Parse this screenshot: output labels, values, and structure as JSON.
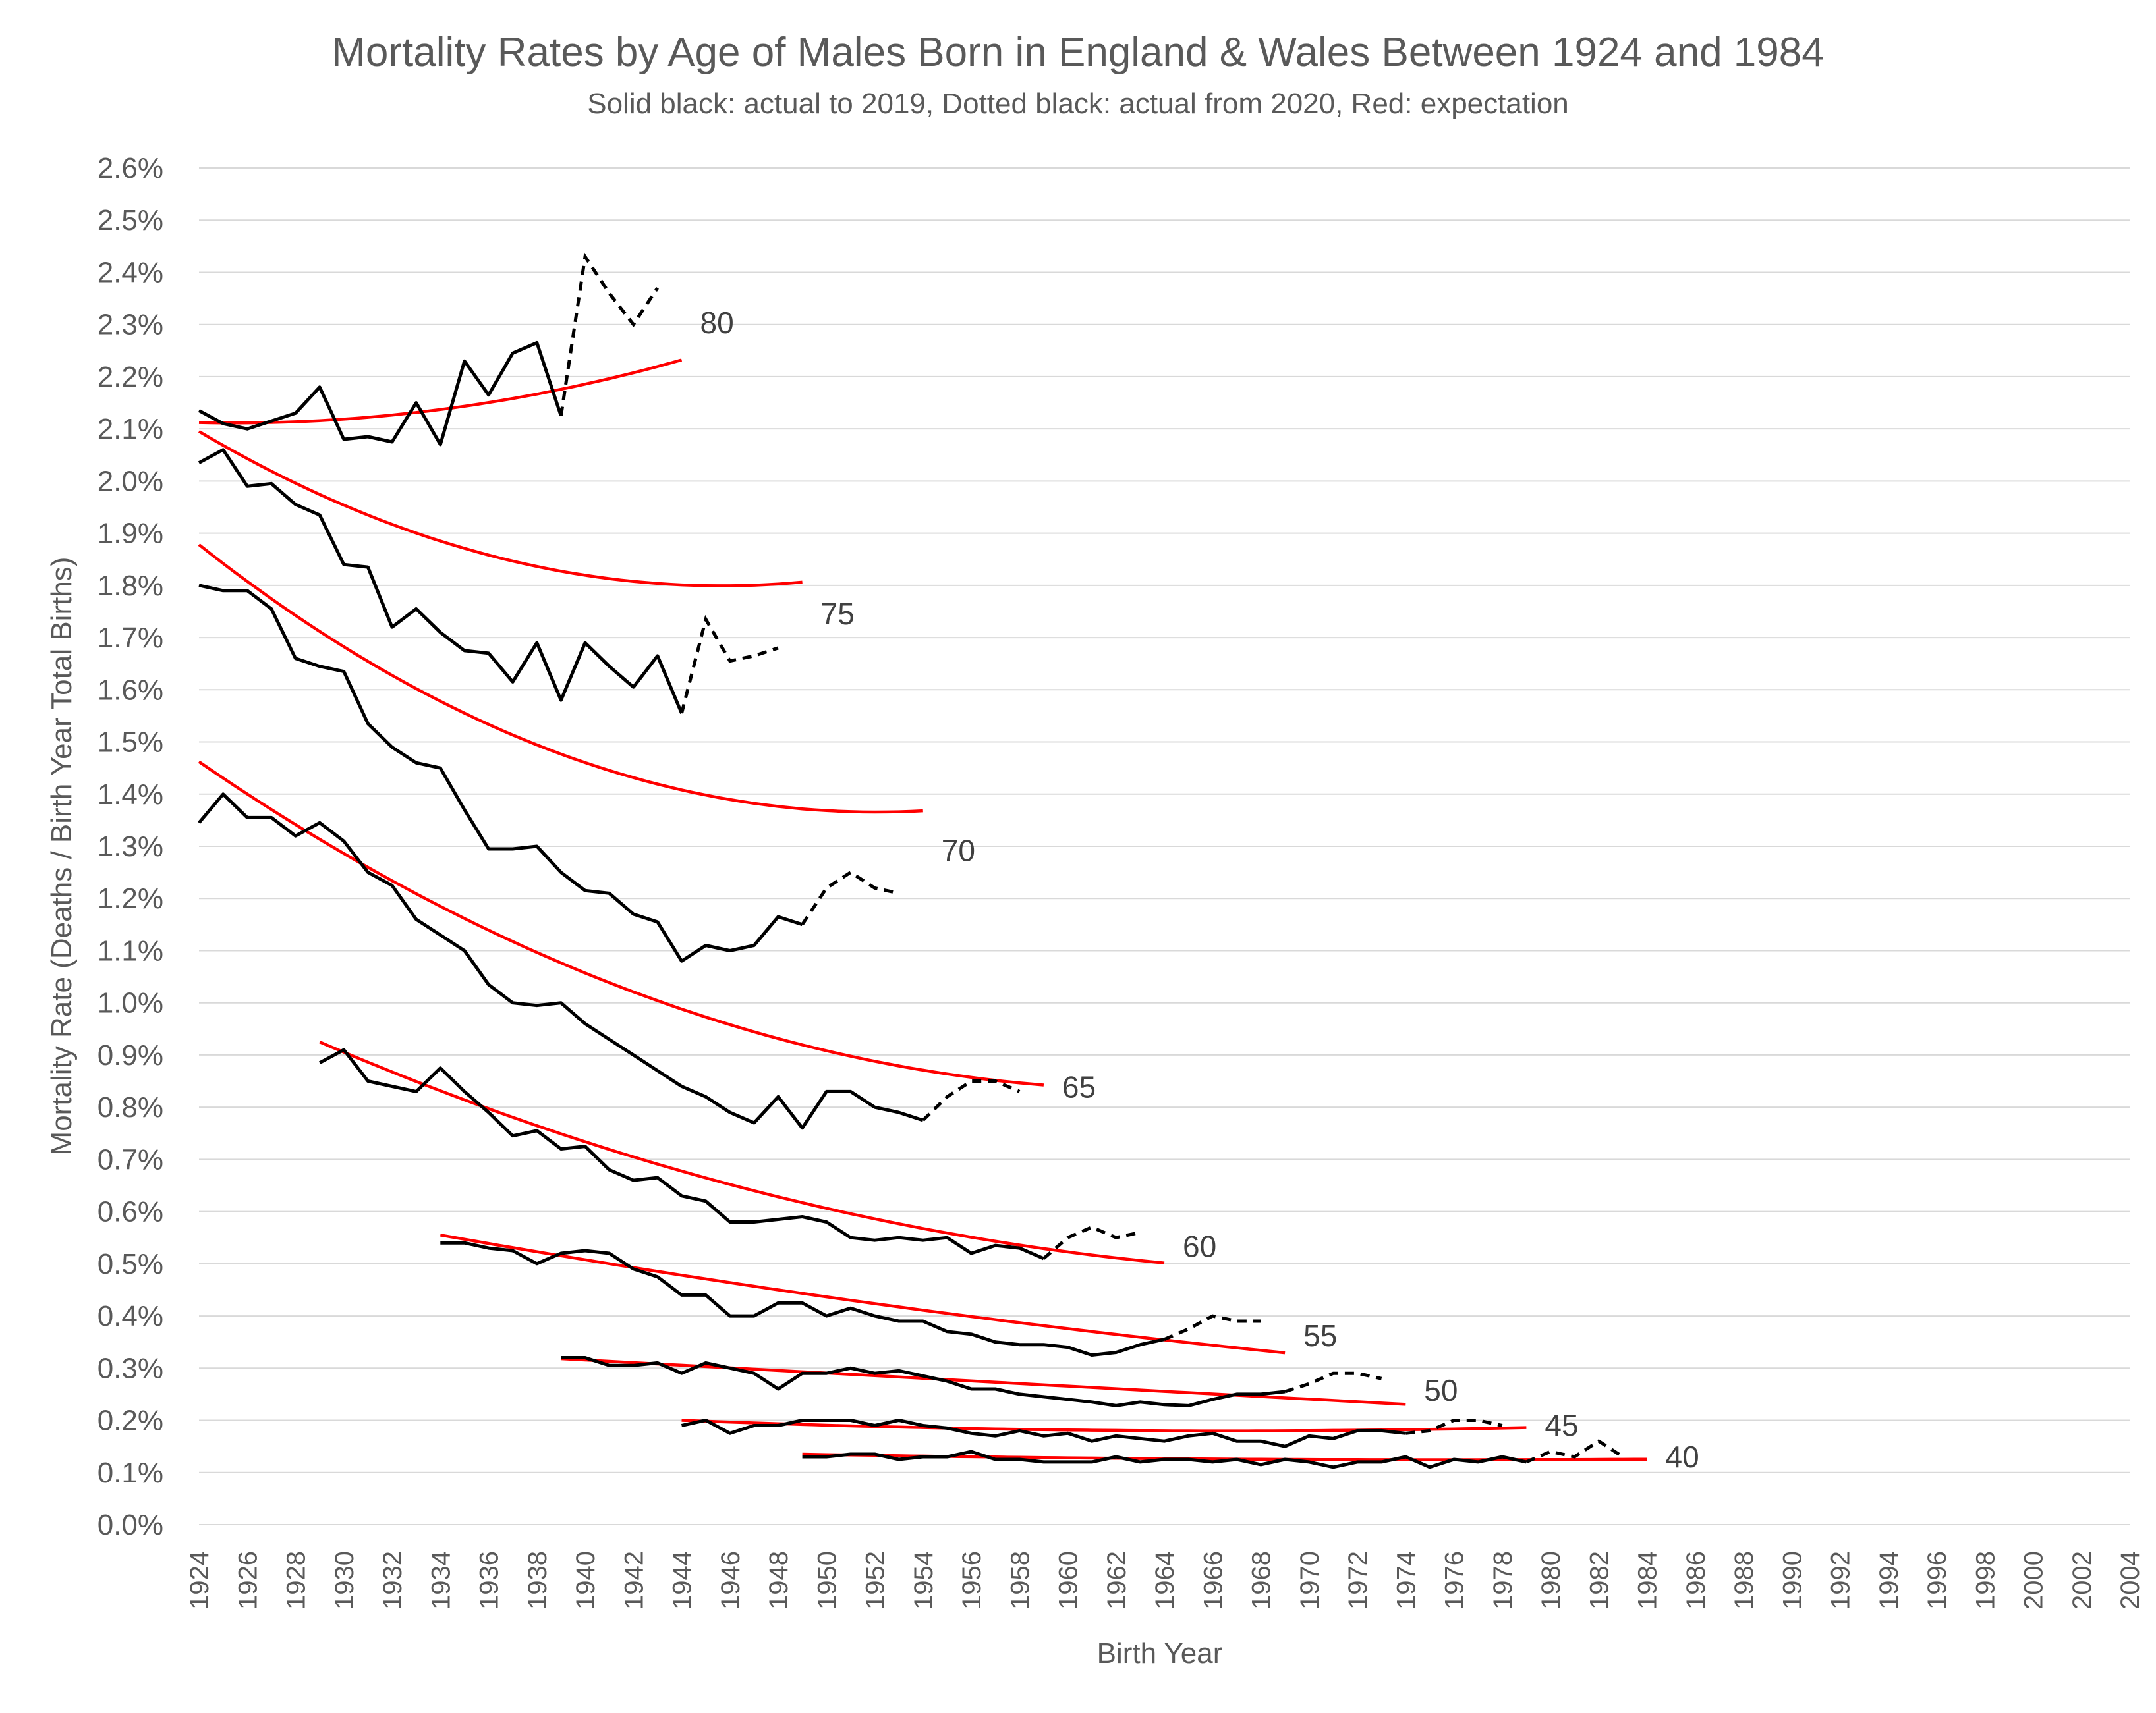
{
  "chart_data": {
    "type": "line",
    "title": "Mortality Rates by Age of Males Born in England & Wales Between 1924 and 1984",
    "subtitle": "Solid black: actual to 2019, Dotted black: actual from 2020, Red: expectation",
    "xlabel": "Birth Year",
    "ylabel": "Mortality Rate (Deaths / Birth Year Total Births)",
    "xlim": [
      1924,
      2004
    ],
    "ylim": [
      0,
      0.026
    ],
    "x_ticks": [
      "1924",
      "1926",
      "1928",
      "1930",
      "1932",
      "1934",
      "1936",
      "1938",
      "1940",
      "1942",
      "1944",
      "1946",
      "1948",
      "1950",
      "1952",
      "1954",
      "1956",
      "1958",
      "1960",
      "1962",
      "1964",
      "1966",
      "1968",
      "1970",
      "1972",
      "1974",
      "1976",
      "1978",
      "1980",
      "1982",
      "1984",
      "1986",
      "1988",
      "1990",
      "1992",
      "1994",
      "1996",
      "1998",
      "2000",
      "2002",
      "2004"
    ],
    "y_ticks": [
      "0.0%",
      "0.1%",
      "0.2%",
      "0.3%",
      "0.4%",
      "0.5%",
      "0.6%",
      "0.7%",
      "0.8%",
      "0.9%",
      "1.0%",
      "1.1%",
      "1.2%",
      "1.3%",
      "1.4%",
      "1.5%",
      "1.6%",
      "1.7%",
      "1.8%",
      "1.9%",
      "2.0%",
      "2.1%",
      "2.2%",
      "2.3%",
      "2.4%",
      "2.5%",
      "2.6%"
    ],
    "grid": true,
    "colors": {
      "actual": "#000000",
      "expectation": "#ff0000"
    },
    "series": [
      {
        "name": "80",
        "actual_start": 1924,
        "actual": [
          0.02135,
          0.0211,
          0.021,
          0.02115,
          0.0213,
          0.0218,
          0.0208,
          0.02085,
          0.02075,
          0.0215,
          0.0207,
          0.0223,
          0.02165,
          0.02245,
          0.02265,
          0.02125
        ],
        "dotted_start": 1939,
        "dotted": [
          0.02125,
          0.0243,
          0.0236,
          0.023,
          0.0237
        ],
        "expected_range": [
          1924,
          1944
        ],
        "expected_quad": [
          0.02112,
          -1e-05,
          3.5e-06
        ]
      },
      {
        "name": "75",
        "actual_start": 1924,
        "actual": [
          0.02035,
          0.0206,
          0.0199,
          0.01995,
          0.01955,
          0.01935,
          0.0184,
          0.01835,
          0.0172,
          0.01755,
          0.0171,
          0.01675,
          0.0167,
          0.01615,
          0.0169,
          0.0158,
          0.0169,
          0.01645,
          0.01605,
          0.01665,
          0.01555
        ],
        "dotted_start": 1944,
        "dotted": [
          0.01555,
          0.01735,
          0.01655,
          0.01665,
          0.0168
        ],
        "expected_range": [
          1924,
          1949
        ],
        "expected_quad": [
          0.02095,
          -0.000273,
          6.3e-06
        ]
      },
      {
        "name": "70",
        "actual_start": 1924,
        "actual": [
          0.018,
          0.0179,
          0.0179,
          0.01755,
          0.0166,
          0.01645,
          0.01635,
          0.01535,
          0.0149,
          0.0146,
          0.0145,
          0.0137,
          0.01295,
          0.01295,
          0.013,
          0.0125,
          0.01215,
          0.0121,
          0.0117,
          0.01155,
          0.0108,
          0.0111,
          0.011,
          0.0111,
          0.01165,
          0.0115
        ],
        "dotted_start": 1949,
        "dotted": [
          0.0115,
          0.0122,
          0.0125,
          0.0122,
          0.0121
        ],
        "expected_range": [
          1924,
          1954
        ],
        "expected_quad": [
          0.01878,
          -0.000365,
          6.5e-06
        ]
      },
      {
        "name": "65",
        "actual_start": 1924,
        "actual": [
          0.01345,
          0.014,
          0.01355,
          0.01355,
          0.0132,
          0.01345,
          0.0131,
          0.0125,
          0.01225,
          0.0116,
          0.0113,
          0.011,
          0.01035,
          0.01,
          0.00995,
          0.01,
          0.0096,
          0.0093,
          0.009,
          0.0087,
          0.0084,
          0.0082,
          0.0079,
          0.0077,
          0.0082,
          0.0076,
          0.0083,
          0.0083,
          0.008,
          0.0079,
          0.00775
        ],
        "dotted_start": 1954,
        "dotted": [
          0.00775,
          0.0082,
          0.0085,
          0.0085,
          0.0083
        ],
        "expected_range": [
          1924,
          1959
        ],
        "expected_quad": [
          0.01462,
          -0.000317,
          4e-06
        ]
      },
      {
        "name": "60",
        "actual_start": 1929,
        "actual": [
          0.00885,
          0.0091,
          0.0085,
          0.0084,
          0.0083,
          0.00875,
          0.0083,
          0.0079,
          0.00745,
          0.00755,
          0.0072,
          0.00725,
          0.0068,
          0.0066,
          0.00665,
          0.0063,
          0.0062,
          0.0058,
          0.0058,
          0.00585,
          0.0059,
          0.0058,
          0.0055,
          0.00545,
          0.0055,
          0.00545,
          0.0055,
          0.0052,
          0.00535,
          0.0053,
          0.0051
        ],
        "dotted_start": 1959,
        "dotted": [
          0.0051,
          0.0055,
          0.0057,
          0.0055,
          0.0056
        ],
        "expected_range": [
          1929,
          1964
        ],
        "expected_quad": [
          0.00925,
          -0.000198,
          2.2e-06
        ]
      },
      {
        "name": "55",
        "actual_start": 1934,
        "actual": [
          0.0054,
          0.0054,
          0.0053,
          0.00525,
          0.005,
          0.0052,
          0.00525,
          0.0052,
          0.0049,
          0.00475,
          0.0044,
          0.0044,
          0.004,
          0.004,
          0.00425,
          0.00425,
          0.004,
          0.00415,
          0.004,
          0.0039,
          0.0039,
          0.0037,
          0.00365,
          0.0035,
          0.00345,
          0.00345,
          0.0034,
          0.00325,
          0.0033,
          0.00345,
          0.00355
        ],
        "dotted_start": 1964,
        "dotted": [
          0.00355,
          0.00375,
          0.004,
          0.0039,
          0.0039
        ],
        "expected_range": [
          1934,
          1969
        ],
        "expected_quad": [
          0.00555,
          -8.2e-05,
          5e-07
        ]
      },
      {
        "name": "50",
        "actual_start": 1939,
        "actual": [
          0.0032,
          0.0032,
          0.00305,
          0.00305,
          0.0031,
          0.0029,
          0.0031,
          0.003,
          0.0029,
          0.0026,
          0.0029,
          0.0029,
          0.003,
          0.0029,
          0.00295,
          0.00285,
          0.00275,
          0.0026,
          0.0026,
          0.0025,
          0.00245,
          0.0024,
          0.00235,
          0.00228,
          0.00235,
          0.0023,
          0.00228,
          0.0024,
          0.0025,
          0.0025,
          0.00255
        ],
        "dotted_start": 1969,
        "dotted": [
          0.00255,
          0.0027,
          0.0029,
          0.0029,
          0.0028
        ],
        "expected_range": [
          1939,
          1974
        ],
        "expected_quad": [
          0.00318,
          -2.5e-05,
          0.0
        ]
      },
      {
        "name": "45",
        "actual_start": 1944,
        "actual": [
          0.0019,
          0.002,
          0.00175,
          0.0019,
          0.0019,
          0.002,
          0.002,
          0.002,
          0.0019,
          0.002,
          0.0019,
          0.00185,
          0.00175,
          0.0017,
          0.0018,
          0.0017,
          0.00175,
          0.0016,
          0.0017,
          0.00165,
          0.0016,
          0.0017,
          0.00175,
          0.0016,
          0.0016,
          0.0015,
          0.0017,
          0.00165,
          0.0018,
          0.0018,
          0.00175
        ],
        "dotted_start": 1974,
        "dotted": [
          0.00175,
          0.0018,
          0.002,
          0.002,
          0.0019
        ],
        "expected_range": [
          1944,
          1979
        ],
        "expected_quad": [
          0.002,
          -1.8e-05,
          4e-07
        ]
      },
      {
        "name": "40",
        "actual_start": 1949,
        "actual": [
          0.0013,
          0.0013,
          0.00135,
          0.00135,
          0.00125,
          0.0013,
          0.0013,
          0.0014,
          0.00125,
          0.00125,
          0.0012,
          0.0012,
          0.0012,
          0.0013,
          0.0012,
          0.00125,
          0.00125,
          0.0012,
          0.00125,
          0.00115,
          0.00125,
          0.0012,
          0.0011,
          0.0012,
          0.0012,
          0.0013,
          0.0011,
          0.00125,
          0.0012,
          0.0013,
          0.0012
        ],
        "dotted_start": 1979,
        "dotted": [
          0.0012,
          0.0014,
          0.0013,
          0.0016,
          0.0013
        ],
        "expected_range": [
          1949,
          1984
        ],
        "expected_quad": [
          0.00135,
          -8e-06,
          1.5e-07
        ]
      }
    ]
  }
}
